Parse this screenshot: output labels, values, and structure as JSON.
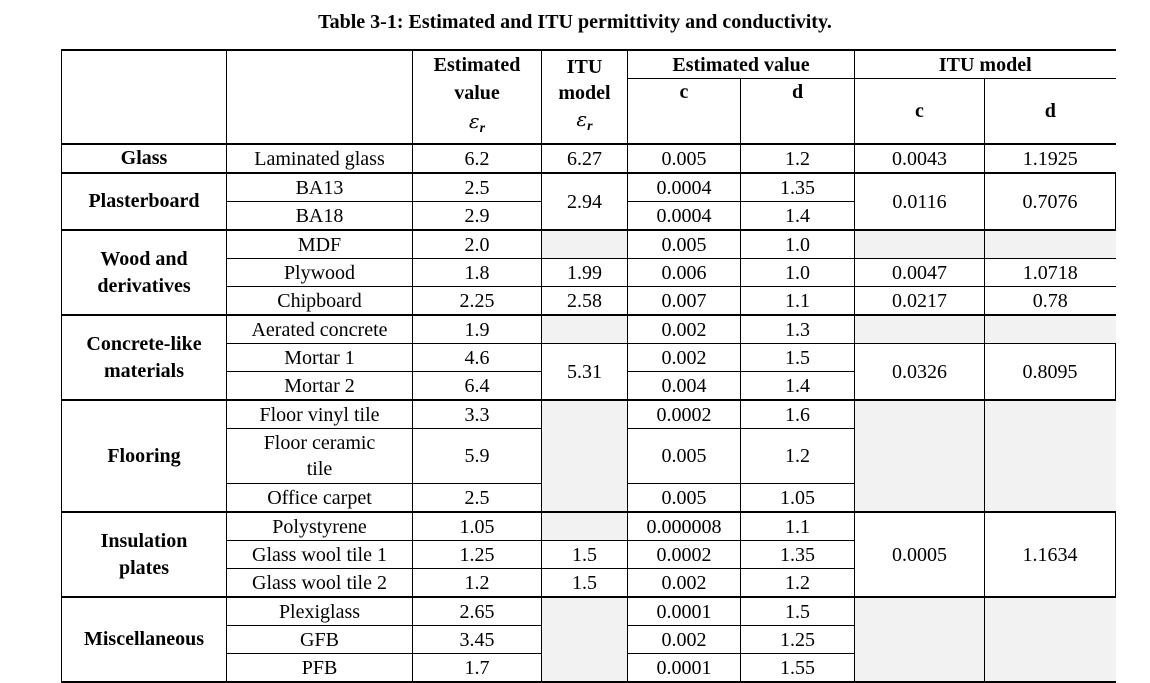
{
  "caption": "Table 3-1: Estimated and ITU permittivity and conductivity.",
  "headers": {
    "estimated_value_er": "Estimated value",
    "itu_model_er": "ITU model",
    "estimated_value": "Estimated value",
    "itu_model": "ITU model",
    "c": "c",
    "d": "d",
    "epsilon": "ε",
    "epsilon_sub": "r"
  },
  "groups": {
    "glass": "Glass",
    "plasterboard": "Plasterboard",
    "wood_line1": "Wood and",
    "wood_line2": "derivatives",
    "concrete_line1": "Concrete-like",
    "concrete_line2": "materials",
    "flooring": "Flooring",
    "insulation_line1": "Insulation",
    "insulation_line2": "plates",
    "misc": "Miscellaneous"
  },
  "rows": [
    {
      "material": "Laminated glass",
      "est_er": "6.2",
      "itu_er": "6.27",
      "est_c": "0.005",
      "est_d": "1.2",
      "itu_c": "0.0043",
      "itu_d": "1.1925"
    },
    {
      "material": "BA13",
      "est_er": "2.5",
      "itu_er": "2.94",
      "est_c": "0.0004",
      "est_d": "1.35",
      "itu_c": "0.0116",
      "itu_d": "0.7076"
    },
    {
      "material": "BA18",
      "est_er": "2.9",
      "est_c": "0.0004",
      "est_d": "1.4"
    },
    {
      "material": "MDF",
      "est_er": "2.0",
      "est_c": "0.005",
      "est_d": "1.0"
    },
    {
      "material": "Plywood",
      "est_er": "1.8",
      "itu_er": "1.99",
      "est_c": "0.006",
      "est_d": "1.0",
      "itu_c": "0.0047",
      "itu_d": "1.0718"
    },
    {
      "material": "Chipboard",
      "est_er": "2.25",
      "itu_er": "2.58",
      "est_c": "0.007",
      "est_d": "1.1",
      "itu_c": "0.0217",
      "itu_d": "0.78"
    },
    {
      "material": "Aerated concrete",
      "est_er": "1.9",
      "est_c": "0.002",
      "est_d": "1.3"
    },
    {
      "material": "Mortar 1",
      "est_er": "4.6",
      "itu_er": "5.31",
      "est_c": "0.002",
      "est_d": "1.5",
      "itu_c": "0.0326",
      "itu_d": "0.8095"
    },
    {
      "material": "Mortar 2",
      "est_er": "6.4",
      "est_c": "0.004",
      "est_d": "1.4"
    },
    {
      "material": "Floor vinyl tile",
      "est_er": "3.3",
      "est_c": "0.0002",
      "est_d": "1.6"
    },
    {
      "material_line1": "Floor ceramic",
      "material_line2": "tile",
      "est_er": "5.9",
      "est_c": "0.005",
      "est_d": "1.2"
    },
    {
      "material": "Office carpet",
      "est_er": "2.5",
      "est_c": "0.005",
      "est_d": "1.05"
    },
    {
      "material": "Polystyrene",
      "est_er": "1.05",
      "est_c": "0.000008",
      "est_d": "1.1",
      "itu_c": "0.0005",
      "itu_d": "1.1634"
    },
    {
      "material": "Glass wool tile 1",
      "est_er": "1.25",
      "itu_er": "1.5",
      "est_c": "0.0002",
      "est_d": "1.35"
    },
    {
      "material": "Glass wool tile 2",
      "est_er": "1.2",
      "itu_er": "1.5",
      "est_c": "0.002",
      "est_d": "1.2"
    },
    {
      "material": "Plexiglass",
      "est_er": "2.65",
      "est_c": "0.0001",
      "est_d": "1.5"
    },
    {
      "material": "GFB",
      "est_er": "3.45",
      "est_c": "0.002",
      "est_d": "1.25"
    },
    {
      "material": "PFB",
      "est_er": "1.7",
      "est_c": "0.0001",
      "est_d": "1.55"
    }
  ]
}
